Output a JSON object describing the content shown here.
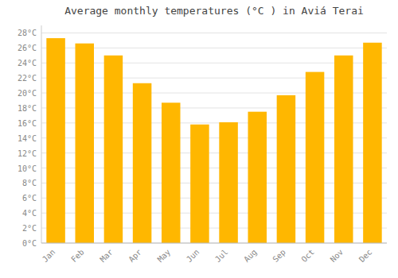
{
  "chart_data": {
    "type": "bar",
    "title": "Average monthly temperatures (°C ) in Aviá Terai",
    "categories": [
      "Jan",
      "Feb",
      "Mar",
      "Apr",
      "May",
      "Jun",
      "Jul",
      "Aug",
      "Sep",
      "Oct",
      "Nov",
      "Dec"
    ],
    "values": [
      27.3,
      26.6,
      25.0,
      21.3,
      18.7,
      15.8,
      16.1,
      17.5,
      19.7,
      22.8,
      25.0,
      26.7
    ],
    "color": "#FFB700",
    "ylim": [
      0,
      29
    ],
    "yticks": [
      {
        "value": 0,
        "label": "0°C"
      },
      {
        "value": 2,
        "label": "2°C"
      },
      {
        "value": 4,
        "label": "4°C"
      },
      {
        "value": 6,
        "label": "6°C"
      },
      {
        "value": 8,
        "label": "8°C"
      },
      {
        "value": 10,
        "label": "10°C"
      },
      {
        "value": 12,
        "label": "12°C"
      },
      {
        "value": 14,
        "label": "14°C"
      },
      {
        "value": 16,
        "label": "16°C"
      },
      {
        "value": 18,
        "label": "18°C"
      },
      {
        "value": 20,
        "label": "20°C"
      },
      {
        "value": 22,
        "label": "22°C"
      },
      {
        "value": 24,
        "label": "24°C"
      },
      {
        "value": 26,
        "label": "26°C"
      },
      {
        "value": 28,
        "label": "28°C"
      }
    ],
    "grid": true
  }
}
